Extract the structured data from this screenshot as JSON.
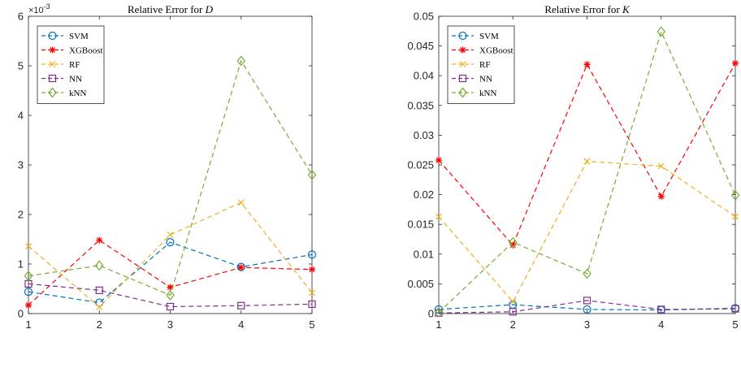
{
  "chart_data": [
    {
      "type": "line",
      "title": "Relative Error for ",
      "title_var": "D",
      "x": [
        1,
        2,
        3,
        4,
        5
      ],
      "xlim": [
        1,
        5
      ],
      "xticks": [
        "1",
        "2",
        "3",
        "4",
        "5"
      ],
      "ylim": [
        0,
        6
      ],
      "yticks": [
        "0",
        "1",
        "2",
        "3",
        "4",
        "5",
        "6"
      ],
      "exponent_base": "×10",
      "exponent_power": "-3",
      "grid": false,
      "legend": "top-left",
      "series": [
        {
          "name": "SVM",
          "color": "#0072BD",
          "marker": "circle",
          "values": [
            0.44,
            0.22,
            1.44,
            0.94,
            1.19
          ]
        },
        {
          "name": "XGBoost",
          "color": "#FF0000",
          "marker": "asterisk",
          "values": [
            0.17,
            1.48,
            0.53,
            0.93,
            0.89
          ]
        },
        {
          "name": "RF",
          "color": "#EDB120",
          "marker": "x",
          "values": [
            1.36,
            0.13,
            1.59,
            2.24,
            0.42
          ]
        },
        {
          "name": "NN",
          "color": "#7E2F8E",
          "marker": "square",
          "values": [
            0.6,
            0.47,
            0.14,
            0.16,
            0.19
          ]
        },
        {
          "name": "kNN",
          "color": "#77AC30",
          "marker": "diamond",
          "values": [
            0.76,
            0.97,
            0.37,
            5.1,
            2.8
          ]
        }
      ]
    },
    {
      "type": "line",
      "title": "Relative Error for ",
      "title_var": "K",
      "x": [
        1,
        2,
        3,
        4,
        5
      ],
      "xlim": [
        1,
        5
      ],
      "xticks": [
        "1",
        "2",
        "3",
        "4",
        "5"
      ],
      "ylim": [
        0,
        0.05
      ],
      "yticks": [
        "0",
        "0.005",
        "0.01",
        "0.015",
        "0.02",
        "0.025",
        "0.03",
        "0.035",
        "0.04",
        "0.045",
        "0.05"
      ],
      "grid": false,
      "legend": "top-left",
      "series": [
        {
          "name": "SVM",
          "color": "#0072BD",
          "marker": "circle",
          "values": [
            0.0007,
            0.0015,
            0.0007,
            0.0006,
            0.0009
          ]
        },
        {
          "name": "XGBoost",
          "color": "#FF0000",
          "marker": "asterisk",
          "values": [
            0.0258,
            0.0115,
            0.0419,
            0.0197,
            0.0421
          ]
        },
        {
          "name": "RF",
          "color": "#EDB120",
          "marker": "x",
          "values": [
            0.0163,
            0.002,
            0.0256,
            0.0248,
            0.0163
          ]
        },
        {
          "name": "NN",
          "color": "#7E2F8E",
          "marker": "square",
          "values": [
            0.0001,
            0.0003,
            0.0022,
            0.0007,
            0.0008
          ]
        },
        {
          "name": "kNN",
          "color": "#77AC30",
          "marker": "diamond",
          "values": [
            0.0002,
            0.012,
            0.0067,
            0.0474,
            0.0199
          ]
        }
      ]
    }
  ]
}
